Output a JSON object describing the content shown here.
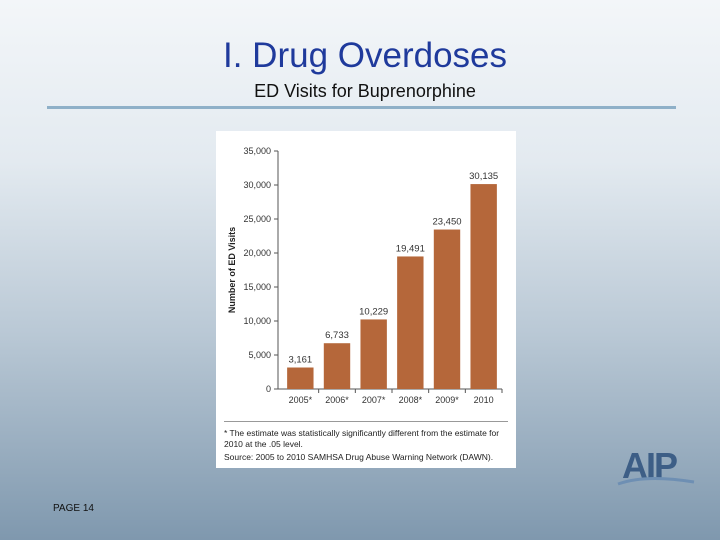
{
  "slide": {
    "title": "I. Drug Overdoses",
    "subtitle": "ED Visits for Buprenorphine",
    "page_label": "PAGE 14",
    "logo_text": "AIP"
  },
  "chart_data": {
    "type": "bar",
    "categories": [
      "2005*",
      "2006*",
      "2007*",
      "2008*",
      "2009*",
      "2010"
    ],
    "values": [
      3161,
      6733,
      10229,
      19491,
      23450,
      30135
    ],
    "data_labels": [
      "3,161",
      "6,733",
      "10,229",
      "19,491",
      "23,450",
      "30,135"
    ],
    "ylabel": "Number of ED Visits",
    "ylim": [
      0,
      35000
    ],
    "yticks": [
      0,
      5000,
      10000,
      15000,
      20000,
      25000,
      30000,
      35000
    ],
    "ytick_labels": [
      "0",
      "5,000",
      "10,000",
      "15,000",
      "20,000",
      "25,000",
      "30,000",
      "35,000"
    ],
    "bar_color": "#b5673a",
    "grid": false,
    "footnote": "* The estimate was statistically significantly different from the estimate for 2010 at the .05 level.",
    "source": "Source: 2005 to 2010 SAMHSA Drug Abuse Warning Network (DAWN)."
  }
}
